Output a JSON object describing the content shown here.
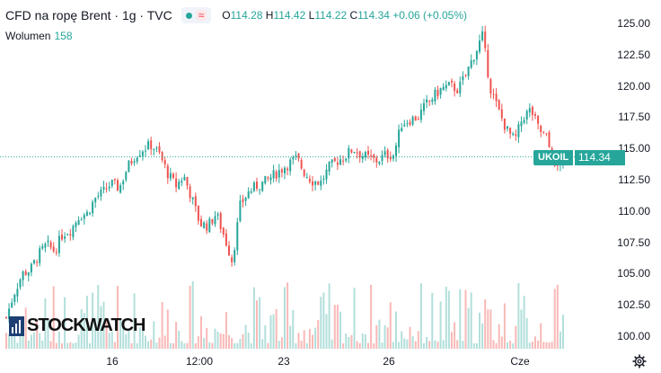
{
  "header": {
    "title": "CFD na ropę Brent · 1g · TVC",
    "wave_icon": "≈",
    "ohlc": [
      {
        "key": "O",
        "value": "114.28"
      },
      {
        "key": "H",
        "value": "114.42"
      },
      {
        "key": "L",
        "value": "114.22"
      },
      {
        "key": "C",
        "value": "114.34"
      }
    ],
    "change": "+0.06 (+0.05%)"
  },
  "volume": {
    "label": "Wolumen",
    "value": "158"
  },
  "price_tag": {
    "symbol": "UKOIL",
    "value": "114.34"
  },
  "watermark": {
    "text": "STOCKWATCH"
  },
  "colors": {
    "up": "#26a69a",
    "down": "#ef5350",
    "up_vol": "#b2dfdb",
    "down_vol": "#f8b9b7"
  },
  "chart_data": {
    "type": "candlestick",
    "y_ticks": [
      "125.00",
      "122.50",
      "120.00",
      "117.50",
      "115.00",
      "112.50",
      "110.00",
      "107.50",
      "105.00",
      "102.50",
      "100.00"
    ],
    "y_range": [
      100,
      125
    ],
    "x_ticks": [
      "16",
      "12:00",
      "23",
      "26",
      "Cze"
    ],
    "last_price": 114.34,
    "close_path": [
      101.5,
      103.5,
      105,
      105.3,
      106.5,
      107.3,
      106.8,
      108.2,
      108.5,
      109.6,
      109.8,
      111,
      111.5,
      112.2,
      111.8,
      113.5,
      114.5,
      115,
      115.3,
      114.5,
      113,
      112,
      112.8,
      111,
      109,
      108.8,
      109.8,
      108,
      106,
      110.5,
      111.5,
      112,
      112.3,
      112.8,
      113.3,
      113.8,
      114.2,
      113,
      112.4,
      112.3,
      113.5,
      114,
      114.4,
      115,
      114.5,
      114.2,
      114,
      114.5,
      114.5,
      117,
      117.3,
      117.5,
      118.5,
      119.2,
      119.8,
      120,
      119.7,
      121,
      122.5,
      124,
      119.8,
      118,
      116.5,
      115.6,
      117.5,
      118.1,
      116.5,
      115.8,
      113.2,
      114.34
    ]
  }
}
